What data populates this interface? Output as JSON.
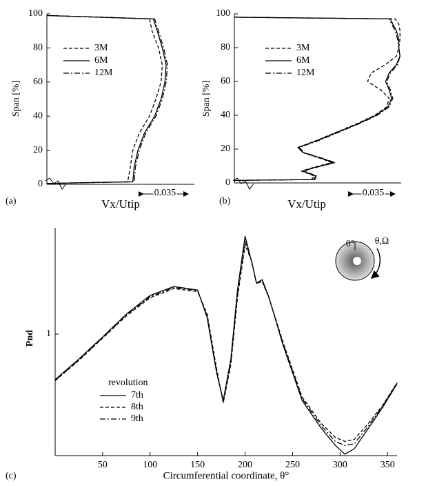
{
  "chart_data": [
    {
      "type": "line",
      "panel_label": "(a)",
      "ylabel": "Span [%]",
      "xlabel": "Vx/Utip",
      "scale_bar": 0.035,
      "xlim": [
        0,
        0.115
      ],
      "ylim": [
        0,
        100
      ],
      "yticks": [
        0,
        20,
        40,
        60,
        80,
        100
      ],
      "series": [
        {
          "name": "3M",
          "style": "dashed",
          "color": "#000000",
          "x": [
            0,
            0.063,
            0.065,
            0.067,
            0.072,
            0.08,
            0.085,
            0.089,
            0.09,
            0.087,
            0.082,
            0.08,
            0
          ],
          "values": [
            0.5,
            1.5,
            10,
            20,
            30,
            40,
            50,
            60,
            70,
            80,
            90,
            97,
            99
          ]
        },
        {
          "name": "6M",
          "style": "solid",
          "color": "#000000",
          "x": [
            0,
            0.067,
            0.068,
            0.071,
            0.076,
            0.084,
            0.089,
            0.092,
            0.093,
            0.09,
            0.086,
            0.083,
            0
          ],
          "values": [
            0.5,
            1.5,
            10,
            20,
            30,
            40,
            50,
            60,
            70,
            80,
            90,
            97,
            99
          ]
        },
        {
          "name": "12M",
          "style": "dash-dot",
          "color": "#000000",
          "x": [
            0,
            0.068,
            0.069,
            0.072,
            0.077,
            0.085,
            0.09,
            0.093,
            0.094,
            0.091,
            0.087,
            0.084,
            0
          ],
          "values": [
            0.5,
            1.5,
            10,
            20,
            30,
            40,
            50,
            60,
            70,
            80,
            90,
            97,
            99
          ]
        }
      ]
    },
    {
      "type": "line",
      "panel_label": "(b)",
      "ylabel": "Span [%]",
      "xlabel": "Vx/Utip",
      "scale_bar": 0.035,
      "xlim": [
        0,
        0.139
      ],
      "ylim": [
        0,
        100
      ],
      "yticks": [
        0,
        20,
        40,
        60,
        80,
        100
      ],
      "series": [
        {
          "name": "3M",
          "style": "dashed",
          "color": "#000000",
          "x": [
            0,
            0.064,
            0.067,
            0.056,
            0.065,
            0.081,
            0.074,
            0.057,
            0.053,
            0.068,
            0.085,
            0.102,
            0.117,
            0.127,
            0.129,
            0.122,
            0.111,
            0.114,
            0.126,
            0.135,
            0.137,
            0.138,
            0.138,
            0.137,
            0.134,
            0
          ],
          "values": [
            1.5,
            2,
            4,
            7,
            9,
            12,
            14,
            18,
            21,
            25,
            30,
            35,
            40,
            45,
            50,
            55,
            60,
            65,
            70,
            75,
            80,
            85,
            90,
            94,
            97,
            98
          ]
        },
        {
          "name": "6M",
          "style": "solid",
          "color": "#000000",
          "x": [
            0,
            0.066,
            0.068,
            0.057,
            0.066,
            0.083,
            0.075,
            0.057,
            0.053,
            0.069,
            0.086,
            0.103,
            0.118,
            0.128,
            0.131,
            0.129,
            0.126,
            0.129,
            0.135,
            0.138,
            0.137,
            0.137,
            0.135,
            0.132,
            0.13,
            0
          ],
          "values": [
            1.5,
            2,
            4,
            7,
            9,
            12,
            14,
            18,
            21,
            25,
            30,
            35,
            40,
            45,
            50,
            55,
            60,
            65,
            70,
            75,
            80,
            85,
            90,
            94,
            97,
            98
          ]
        },
        {
          "name": "12M",
          "style": "dash-dot",
          "color": "#000000",
          "x": [
            0,
            0.067,
            0.069,
            0.058,
            0.067,
            0.084,
            0.076,
            0.058,
            0.054,
            0.07,
            0.087,
            0.104,
            0.119,
            0.129,
            0.132,
            0.13,
            0.127,
            0.13,
            0.136,
            0.138,
            0.137,
            0.136,
            0.134,
            0.131,
            0.129,
            0
          ],
          "values": [
            1.5,
            2,
            4,
            7,
            9,
            12,
            14,
            18,
            21,
            25,
            30,
            35,
            40,
            45,
            50,
            55,
            60,
            65,
            70,
            75,
            80,
            85,
            90,
            94,
            97,
            98
          ]
        }
      ]
    },
    {
      "type": "line",
      "panel_label": "(c)",
      "ylabel": "Pnd",
      "xlabel": "Circumferential coordinate, θ°",
      "legend_title": "revolution",
      "annotations": [
        "0°",
        "θ,Ω"
      ],
      "xlim": [
        0,
        360
      ],
      "xticks": [
        50,
        100,
        150,
        200,
        250,
        300,
        350
      ],
      "ylim": [
        0.4,
        1.525
      ],
      "yticks": [
        1
      ],
      "x": [
        0,
        25,
        50,
        75,
        100,
        125,
        150,
        160,
        170,
        177,
        185,
        192,
        200,
        207,
        212,
        218,
        225,
        240,
        260,
        280,
        295,
        305,
        315,
        330,
        345,
        360
      ],
      "series": [
        {
          "name": "7th",
          "style": "solid",
          "color": "#000000",
          "values": [
            0.775,
            0.877,
            0.986,
            1.099,
            1.191,
            1.235,
            1.218,
            1.082,
            0.809,
            0.673,
            0.877,
            1.218,
            1.484,
            1.355,
            1.252,
            1.269,
            1.184,
            0.945,
            0.673,
            0.536,
            0.451,
            0.407,
            0.434,
            0.536,
            0.639,
            0.755
          ]
        },
        {
          "name": "8th",
          "style": "dashed",
          "color": "#000000",
          "values": [
            0.77,
            0.87,
            0.98,
            1.09,
            1.18,
            1.225,
            1.21,
            1.1,
            0.83,
            0.66,
            0.85,
            1.18,
            1.44,
            1.36,
            1.25,
            1.26,
            1.18,
            0.96,
            0.69,
            0.56,
            0.49,
            0.47,
            0.48,
            0.56,
            0.65,
            0.76
          ]
        },
        {
          "name": "9th",
          "style": "dash-dot",
          "color": "#000000",
          "values": [
            0.772,
            0.873,
            0.983,
            1.095,
            1.185,
            1.23,
            1.215,
            1.09,
            0.82,
            0.665,
            0.86,
            1.2,
            1.46,
            1.358,
            1.251,
            1.265,
            1.182,
            0.952,
            0.682,
            0.548,
            0.47,
            0.45,
            0.458,
            0.548,
            0.645,
            0.758
          ]
        }
      ]
    }
  ]
}
